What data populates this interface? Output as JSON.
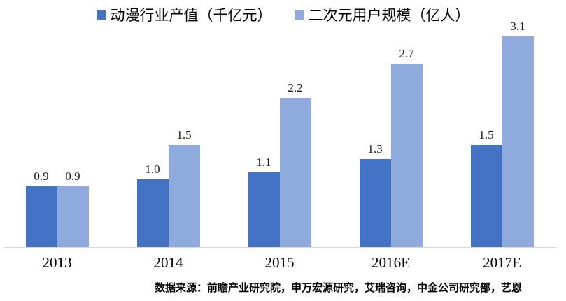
{
  "chart_data": {
    "type": "bar",
    "title": "",
    "categories": [
      "2013",
      "2014",
      "2015",
      "2016E",
      "2017E"
    ],
    "series": [
      {
        "name": "动漫行业产值（千亿元）",
        "color": "#4472c4",
        "values": [
          0.9,
          1.0,
          1.1,
          1.3,
          1.5
        ]
      },
      {
        "name": "二次元用户规模（亿人）",
        "color": "#8faadc",
        "values": [
          0.9,
          1.5,
          2.2,
          2.7,
          3.1
        ]
      }
    ],
    "ylim": [
      0,
      3.5
    ],
    "grid": false,
    "legend_position": "top",
    "value_labels": true,
    "axis_line_color": "#d9d9d9"
  },
  "source_note": "数据来源：前瞻产业研究院，申万宏源研究，艾瑞咨询，中金公司研究部，艺恩"
}
